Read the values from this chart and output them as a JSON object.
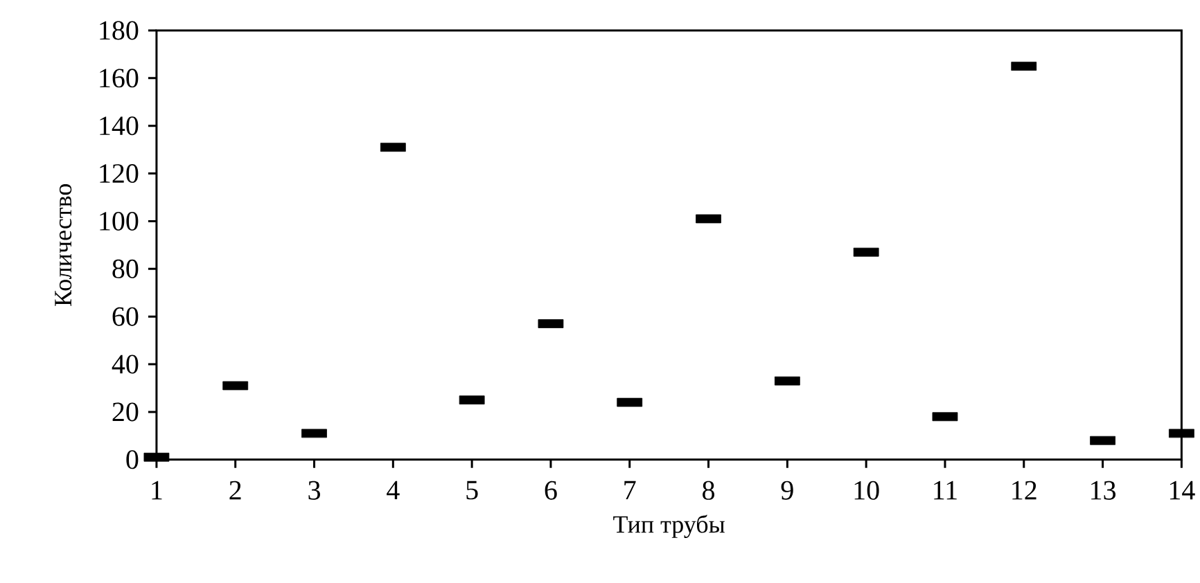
{
  "chart_data": {
    "type": "scatter",
    "xlabel": "Тип трубы",
    "ylabel": "Количество",
    "x": [
      1,
      2,
      3,
      4,
      5,
      6,
      7,
      8,
      9,
      10,
      11,
      12,
      13,
      14
    ],
    "values": [
      1,
      31,
      11,
      131,
      25,
      57,
      24,
      101,
      33,
      87,
      18,
      165,
      8,
      11
    ],
    "color": "#000000",
    "xlim": [
      1,
      14
    ],
    "xticks": [
      1,
      2,
      3,
      4,
      5,
      6,
      7,
      8,
      9,
      10,
      11,
      12,
      13,
      14
    ],
    "ylim": [
      0,
      180
    ],
    "yticks": [
      0,
      20,
      40,
      60,
      80,
      100,
      120,
      140,
      160,
      180
    ],
    "grid": false,
    "legend": false
  }
}
